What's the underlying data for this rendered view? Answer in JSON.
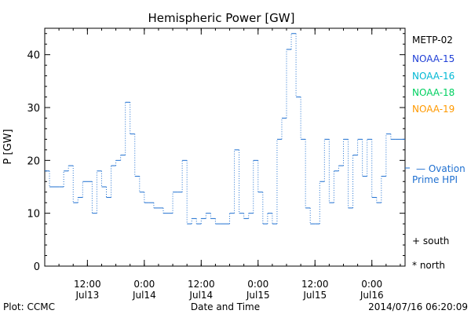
{
  "chart_data": {
    "type": "line",
    "title": "Hemispheric Power [GW]",
    "ylabel": "P [GW]",
    "xlabel": "Date and Time",
    "ylim": [
      0,
      45
    ],
    "yticks": [
      0,
      10,
      20,
      30,
      40
    ],
    "xlim": [
      "2014-07-13 03:00",
      "2014-07-16 07:00"
    ],
    "xticks": [
      {
        "x": "2014-07-13 12:00",
        "time": "12:00",
        "date": "Jul13"
      },
      {
        "x": "2014-07-14 00:00",
        "time": "0:00",
        "date": "Jul14"
      },
      {
        "x": "2014-07-14 12:00",
        "time": "12:00",
        "date": "Jul14"
      },
      {
        "x": "2014-07-15 00:00",
        "time": "0:00",
        "date": "Jul15"
      },
      {
        "x": "2014-07-15 12:00",
        "time": "12:00",
        "date": "Jul15"
      },
      {
        "x": "2014-07-16 00:00",
        "time": "0:00",
        "date": "Jul16"
      }
    ],
    "legend": [
      "METP-02",
      "NOAA-15",
      "NOAA-16",
      "NOAA-18",
      "NOAA-19"
    ],
    "legend_colors": [
      "#000000",
      "#1f3fd6",
      "#00b8d4",
      "#00d060",
      "#ff9900"
    ],
    "ovation_label": [
      "— Ovation",
      "Prime HPI"
    ],
    "ovation_color": "#1e6fd0",
    "marker_legend": [
      "+ south",
      "* north"
    ],
    "grid": false,
    "series": [
      {
        "color": "#1e6fd0",
        "x": [
          "2014-07-13 03:00",
          "2014-07-13 04:00",
          "2014-07-13 06:00",
          "2014-07-13 07:00",
          "2014-07-13 08:00",
          "2014-07-13 09:00",
          "2014-07-13 10:00",
          "2014-07-13 11:00",
          "2014-07-13 13:00",
          "2014-07-13 14:00",
          "2014-07-13 15:00",
          "2014-07-13 16:00",
          "2014-07-13 17:00",
          "2014-07-13 18:00",
          "2014-07-13 19:00",
          "2014-07-13 20:00",
          "2014-07-13 21:00",
          "2014-07-13 22:00",
          "2014-07-13 23:00",
          "2014-07-14 00:00",
          "2014-07-14 01:00",
          "2014-07-14 02:00",
          "2014-07-14 03:00",
          "2014-07-14 04:00",
          "2014-07-14 05:00",
          "2014-07-14 06:00",
          "2014-07-14 07:00",
          "2014-07-14 08:00",
          "2014-07-14 09:00",
          "2014-07-14 10:00",
          "2014-07-14 11:00",
          "2014-07-14 12:00",
          "2014-07-14 13:00",
          "2014-07-14 14:00",
          "2014-07-14 15:00",
          "2014-07-14 16:00",
          "2014-07-14 17:00",
          "2014-07-14 18:00",
          "2014-07-14 19:00",
          "2014-07-14 20:00",
          "2014-07-14 21:00",
          "2014-07-14 22:00",
          "2014-07-14 23:00",
          "2014-07-15 00:00",
          "2014-07-15 01:00",
          "2014-07-15 02:00",
          "2014-07-15 03:00",
          "2014-07-15 04:00",
          "2014-07-15 05:00",
          "2014-07-15 06:00",
          "2014-07-15 07:00",
          "2014-07-15 08:00",
          "2014-07-15 09:00",
          "2014-07-15 10:00",
          "2014-07-15 11:00",
          "2014-07-15 12:00",
          "2014-07-15 13:00",
          "2014-07-15 14:00",
          "2014-07-15 15:00",
          "2014-07-15 16:00",
          "2014-07-15 17:00",
          "2014-07-15 18:00",
          "2014-07-15 19:00",
          "2014-07-15 20:00",
          "2014-07-15 21:00",
          "2014-07-15 22:00",
          "2014-07-15 23:00",
          "2014-07-16 00:00",
          "2014-07-16 01:00",
          "2014-07-16 02:00",
          "2014-07-16 03:00",
          "2014-07-16 04:00",
          "2014-07-16 05:00",
          "2014-07-16 06:00",
          "2014-07-16 07:00"
        ],
        "y": [
          18,
          15,
          15,
          18,
          19,
          12,
          13,
          16,
          10,
          18,
          15,
          13,
          19,
          20,
          21,
          31,
          25,
          17,
          14,
          12,
          12,
          11,
          11,
          10,
          10,
          14,
          14,
          20,
          8,
          9,
          8,
          9,
          10,
          9,
          8,
          8,
          8,
          10,
          22,
          10,
          9,
          10,
          20,
          14,
          8,
          10,
          8,
          24,
          28,
          41,
          44,
          32,
          24,
          11,
          8,
          8,
          16,
          24,
          12,
          18,
          19,
          24,
          11,
          21,
          24,
          17,
          24,
          13,
          12,
          17,
          25,
          24,
          24,
          24,
          24
        ]
      }
    ]
  },
  "footer": {
    "left": "Plot: CCMC",
    "center": "Date and Time",
    "right": "2014/07/16 06:20:09"
  }
}
